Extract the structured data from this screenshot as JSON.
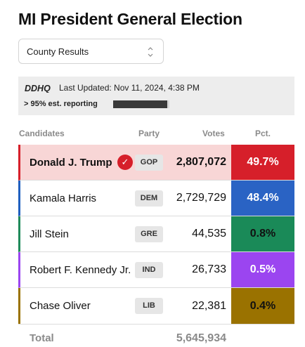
{
  "title": "MI President General Election",
  "view_select": {
    "value": "County Results",
    "icon": "chevron-updown-icon"
  },
  "info": {
    "logo": "DDHQ",
    "last_updated": "Last Updated: Nov 11, 2024, 4:38 PM",
    "reporting_label": "> 95% est. reporting",
    "reporting_fraction": 0.96
  },
  "table": {
    "headers": {
      "candidates": "Candidates",
      "party": "Party",
      "votes": "Votes",
      "pct": "Pct."
    },
    "rows": [
      {
        "name": "Donald J. Trump",
        "party": "GOP",
        "votes": "2,807,072",
        "pct": "49.7%",
        "winner": true,
        "row_bg": "#f8d6d6",
        "bar_color": "#d61f2a",
        "pct_bg": "#d61f2a",
        "pct_fg": "#ffffff"
      },
      {
        "name": "Kamala Harris",
        "party": "DEM",
        "votes": "2,729,729",
        "pct": "48.4%",
        "winner": false,
        "row_bg": "#ffffff",
        "bar_color": "#1f5fbf",
        "pct_bg": "#2a63c4",
        "pct_fg": "#ffffff"
      },
      {
        "name": "Jill Stein",
        "party": "GRE",
        "votes": "44,535",
        "pct": "0.8%",
        "winner": false,
        "row_bg": "#ffffff",
        "bar_color": "#1f8a5a",
        "pct_bg": "#1a8a58",
        "pct_fg": "#111111"
      },
      {
        "name": "Robert F. Kennedy Jr.",
        "party": "IND",
        "votes": "26,733",
        "pct": "0.5%",
        "winner": false,
        "row_bg": "#ffffff",
        "bar_color": "#9b45f0",
        "pct_bg": "#9b45f0",
        "pct_fg": "#ffffff"
      },
      {
        "name": "Chase Oliver",
        "party": "LIB",
        "votes": "22,381",
        "pct": "0.4%",
        "winner": false,
        "row_bg": "#ffffff",
        "bar_color": "#9a7200",
        "pct_bg": "#9a7200",
        "pct_fg": "#111111"
      }
    ],
    "total_label": "Total",
    "total_votes": "5,645,934"
  }
}
